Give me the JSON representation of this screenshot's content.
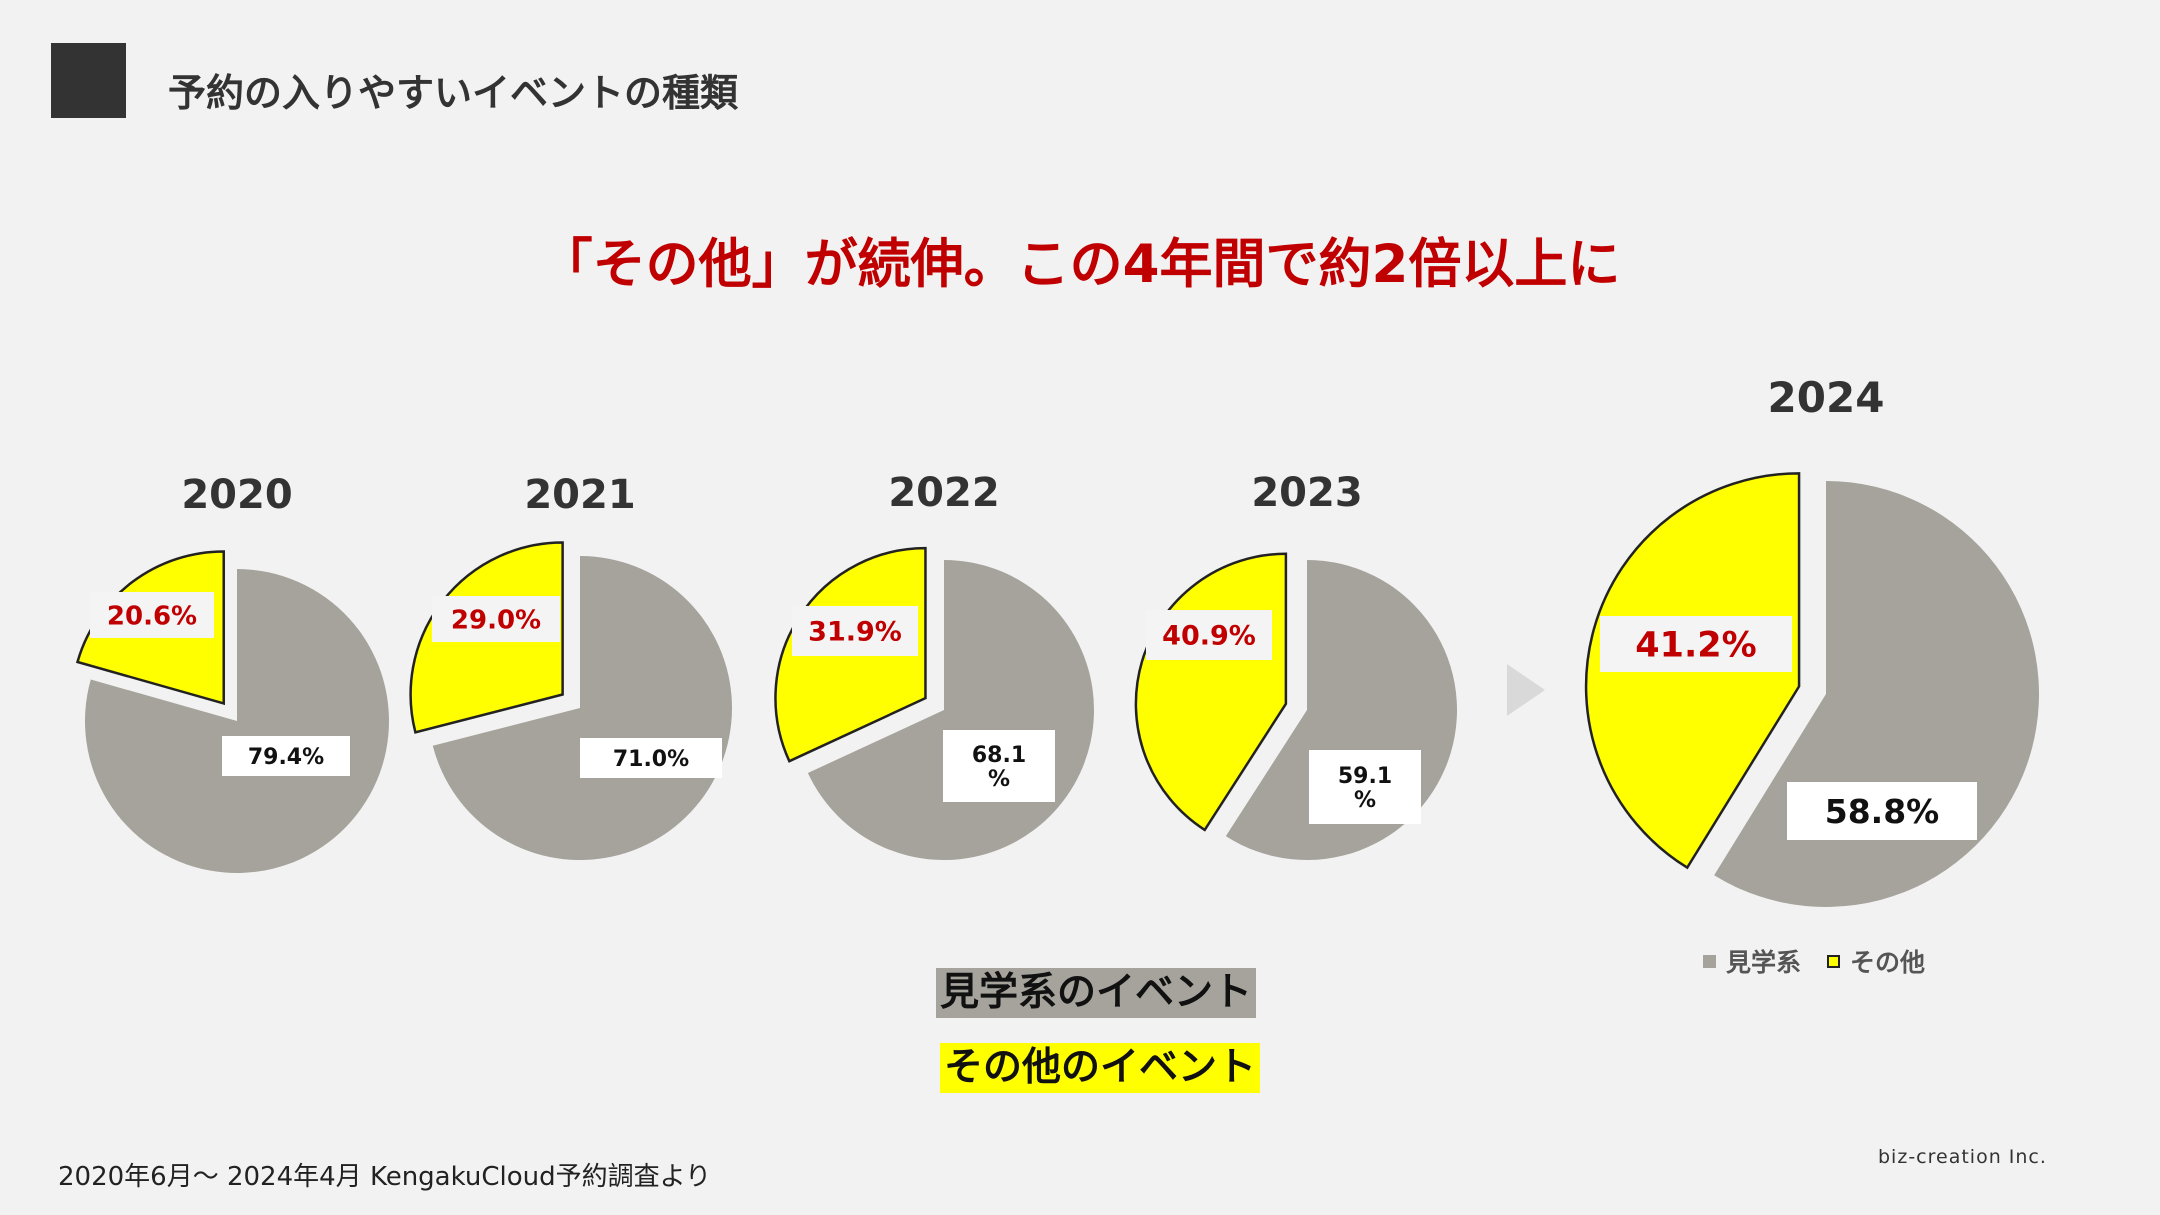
{
  "header": {
    "title": "予約の入りやすいイベントの種類"
  },
  "headline": "「その他」が続伸。この4年間で約2倍以上に",
  "colors": {
    "grey": "#a5a39b",
    "yellow": "#ffff00",
    "red": "#c00000",
    "dark": "#333333"
  },
  "chart_data": [
    {
      "type": "pie",
      "title": "2020",
      "labels": [
        "見学系",
        "その他"
      ],
      "values": [
        79.4,
        20.6
      ],
      "value_labels": [
        "79.4%",
        "20.6%"
      ],
      "exploded": "その他"
    },
    {
      "type": "pie",
      "title": "2021",
      "labels": [
        "見学系",
        "その他"
      ],
      "values": [
        71.0,
        29.0
      ],
      "value_labels": [
        "71.0%",
        "29.0%"
      ],
      "exploded": "その他"
    },
    {
      "type": "pie",
      "title": "2022",
      "labels": [
        "見学系",
        "その他"
      ],
      "values": [
        68.1,
        31.9
      ],
      "value_labels": [
        "68.1\n%",
        "31.9%"
      ],
      "exploded": "その他"
    },
    {
      "type": "pie",
      "title": "2023",
      "labels": [
        "見学系",
        "その他"
      ],
      "values": [
        59.1,
        40.9
      ],
      "value_labels": [
        "59.1\n%",
        "40.9%"
      ],
      "exploded": "その他"
    },
    {
      "type": "pie",
      "title": "2024",
      "labels": [
        "見学系",
        "その他"
      ],
      "values": [
        58.8,
        41.2
      ],
      "value_labels": [
        "58.8%",
        "41.2%"
      ],
      "exploded": "その他"
    }
  ],
  "legend": {
    "items": [
      {
        "label": "見学系",
        "color": "#a5a39b"
      },
      {
        "label": "その他",
        "color": "#ffff00"
      }
    ]
  },
  "key": {
    "grey_label": "見学系のイベント",
    "yellow_label": "その他のイベント"
  },
  "footer": {
    "source": "2020年6月～ 2024年4月 KengakuCloud予約調査より",
    "company": "biz-creation Inc."
  }
}
